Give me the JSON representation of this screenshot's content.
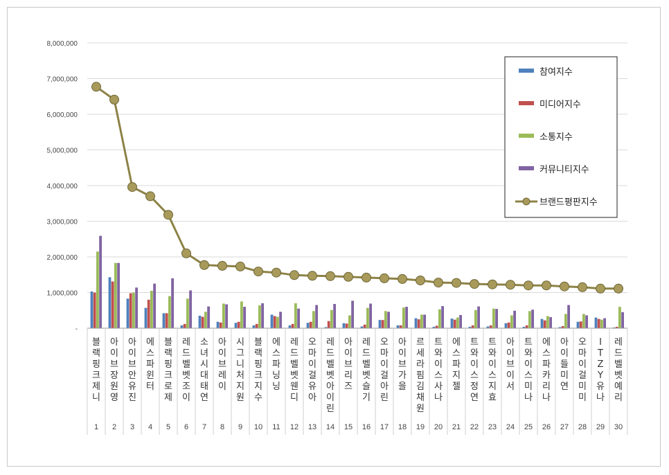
{
  "chart_data": {
    "type": "bar",
    "ylim": [
      0,
      8000000
    ],
    "yticks": [
      "-",
      "1,000,000",
      "2,000,000",
      "3,000,000",
      "4,000,000",
      "5,000,000",
      "6,000,000",
      "7,000,000",
      "8,000,000"
    ],
    "grid": true,
    "legend_position": "top-right",
    "colors": {
      "participation": "#4f81bd",
      "media": "#c0504d",
      "communication": "#9bbb59",
      "community": "#8064a2",
      "brand": "#8c8246",
      "brand_marker": "#a89a5a"
    },
    "categories": [
      "블랙핑크 제니",
      "아이브 장원영",
      "아이브 안유진",
      "에스파 윈터",
      "블랙핑크 로제",
      "레드벨벳 조이",
      "소녀시대 태연",
      "아이브 레이",
      "시그니처 지원",
      "블랙핑크 지수",
      "에스파 닝닝",
      "레드벨벳 웬디",
      "오마이걸 유아",
      "레드벨벳 아이린",
      "아이브 리즈",
      "레드벨벳 슬기",
      "오마이걸 아린",
      "아이브 가을",
      "르세라핌 김채원",
      "트와이스 사나",
      "에스파 지젤",
      "트와이스 정연",
      "트와이스 지효",
      "아이브 이서",
      "트와이스 미나",
      "에스파 카리나",
      "아이들 미연",
      "오마이걸 미미",
      "ITZY 유나",
      "레드벨벳 예리"
    ],
    "indices": [
      "1",
      "2",
      "3",
      "4",
      "5",
      "6",
      "7",
      "8",
      "9",
      "10",
      "11",
      "12",
      "13",
      "14",
      "15",
      "16",
      "17",
      "18",
      "19",
      "20",
      "21",
      "22",
      "23",
      "24",
      "25",
      "26",
      "27",
      "28",
      "29",
      "30"
    ],
    "series": [
      {
        "name": "참여지수",
        "type": "bar",
        "values": [
          1030000,
          1430000,
          830000,
          570000,
          420000,
          80000,
          350000,
          180000,
          150000,
          80000,
          380000,
          80000,
          150000,
          30000,
          140000,
          50000,
          230000,
          80000,
          280000,
          40000,
          270000,
          40000,
          50000,
          140000,
          40000,
          260000,
          30000,
          180000,
          300000,
          20000
        ]
      },
      {
        "name": "미디어지수",
        "type": "bar",
        "values": [
          1000000,
          1310000,
          980000,
          800000,
          420000,
          120000,
          320000,
          160000,
          180000,
          120000,
          340000,
          120000,
          180000,
          200000,
          130000,
          100000,
          230000,
          80000,
          250000,
          70000,
          240000,
          80000,
          80000,
          160000,
          80000,
          220000,
          60000,
          190000,
          260000,
          40000
        ]
      },
      {
        "name": "소통지수",
        "type": "bar",
        "values": [
          2150000,
          1830000,
          1000000,
          1050000,
          900000,
          830000,
          460000,
          690000,
          750000,
          640000,
          320000,
          700000,
          480000,
          510000,
          360000,
          570000,
          480000,
          580000,
          380000,
          530000,
          300000,
          510000,
          550000,
          360000,
          480000,
          340000,
          400000,
          400000,
          240000,
          600000
        ]
      },
      {
        "name": "커뮤니티지수",
        "type": "bar",
        "values": [
          2590000,
          1830000,
          1140000,
          1250000,
          1400000,
          1060000,
          610000,
          670000,
          600000,
          700000,
          460000,
          550000,
          650000,
          680000,
          770000,
          690000,
          460000,
          600000,
          380000,
          620000,
          370000,
          610000,
          540000,
          490000,
          520000,
          310000,
          650000,
          360000,
          280000,
          450000
        ]
      },
      {
        "name": "브랜드평판지수",
        "type": "line",
        "values": [
          6770000,
          6410000,
          3960000,
          3700000,
          3180000,
          2100000,
          1770000,
          1750000,
          1730000,
          1590000,
          1560000,
          1490000,
          1470000,
          1460000,
          1440000,
          1420000,
          1400000,
          1380000,
          1340000,
          1280000,
          1270000,
          1240000,
          1230000,
          1220000,
          1200000,
          1200000,
          1170000,
          1150000,
          1110000,
          1110000
        ]
      }
    ]
  }
}
